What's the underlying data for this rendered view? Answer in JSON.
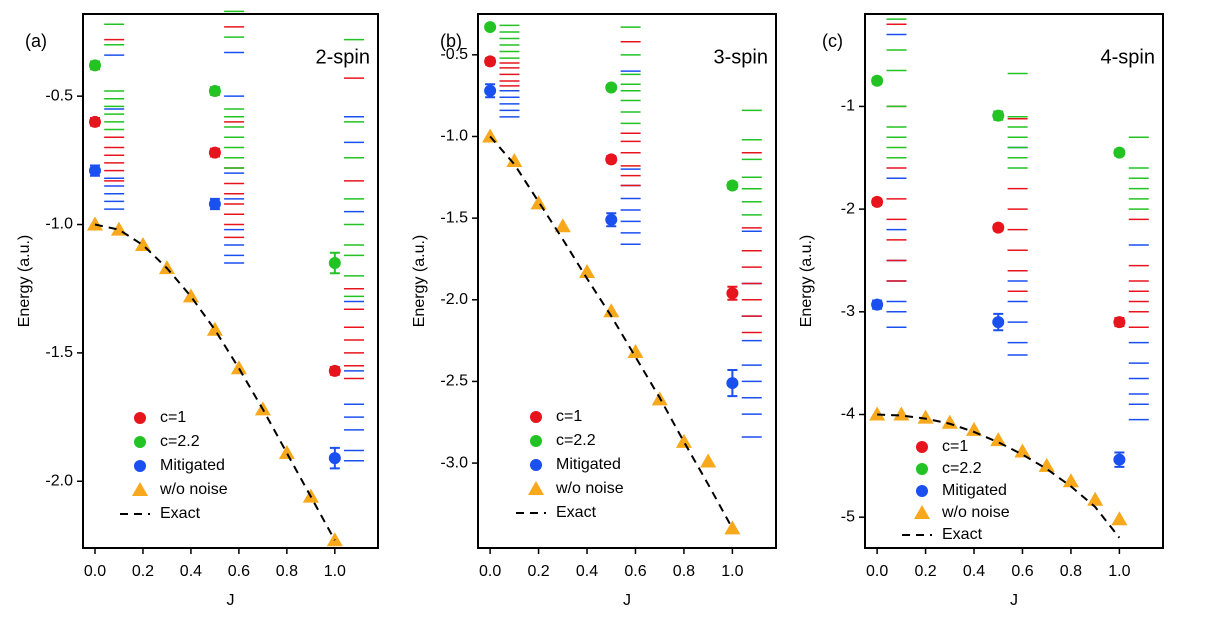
{
  "chart_data": [
    {
      "type": "scatter",
      "label": "(a)",
      "title": "2-spin",
      "xlabel": "J",
      "ylabel": "Energy (a.u.)",
      "xlim": [
        -0.05,
        1.18
      ],
      "xticks": [
        {
          "value": 0,
          "label": "0.0"
        },
        0.2,
        0.4,
        0.6,
        0.8,
        {
          "value": 1,
          "label": "1.0"
        }
      ],
      "ylim": [
        -2.26,
        -0.18
      ],
      "yticks": [
        -0.5,
        {
          "value": -1,
          "label": "-1.0"
        },
        -1.5,
        {
          "value": -2,
          "label": "-2.0"
        }
      ],
      "legend": "lower left",
      "series": [
        {
          "name": "c=1",
          "color": "#e8141d",
          "marker": "circle",
          "x": [
            0,
            0.5,
            1
          ],
          "values": [
            -0.6,
            -0.72,
            -1.57
          ],
          "errors": [
            0.015,
            0.015,
            0.015
          ]
        },
        {
          "name": "c=2.2",
          "color": "#22c322",
          "marker": "circle",
          "x": [
            0,
            0.5,
            1
          ],
          "values": [
            -0.38,
            -0.48,
            -1.15
          ],
          "errors": [
            0.015,
            0.015,
            0.04
          ]
        },
        {
          "name": "Mitigated",
          "color": "#1a4ff0",
          "marker": "circle",
          "x": [
            0,
            0.5,
            1
          ],
          "values": [
            -0.79,
            -0.92,
            -1.91
          ],
          "errors": [
            0.02,
            0.02,
            0.04
          ]
        },
        {
          "name": "w/o noise",
          "color": "#f7a81b",
          "marker": "triangle",
          "x": [
            0,
            0.1,
            0.2,
            0.3,
            0.4,
            0.5,
            0.6,
            0.7,
            0.8,
            0.9,
            1
          ],
          "values": [
            -1.0,
            -1.02,
            -1.08,
            -1.17,
            -1.28,
            -1.41,
            -1.56,
            -1.72,
            -1.89,
            -2.06,
            -2.23
          ]
        },
        {
          "name": "Exact",
          "color": "#000000",
          "marker": "dashed",
          "x": [
            0,
            0.1,
            0.2,
            0.3,
            0.4,
            0.5,
            0.6,
            0.7,
            0.8,
            0.9,
            1
          ],
          "values": [
            -1.0,
            -1.02,
            -1.08,
            -1.17,
            -1.28,
            -1.41,
            -1.56,
            -1.72,
            -1.89,
            -2.06,
            -2.23
          ]
        }
      ],
      "samples": [
        {
          "x": 0.08,
          "color": "#1a4ff0",
          "values": [
            -0.34,
            -0.55,
            -0.82,
            -0.85,
            -0.88,
            -0.91,
            -0.94
          ]
        },
        {
          "x": 0.08,
          "color": "#e8141d",
          "values": [
            -0.28,
            -0.66,
            -0.7,
            -0.73,
            -0.76,
            -0.79,
            -0.83
          ]
        },
        {
          "x": 0.08,
          "color": "#22c322",
          "values": [
            -0.22,
            -0.3,
            -0.48,
            -0.51,
            -0.54,
            -0.57,
            -0.6,
            -0.63
          ]
        },
        {
          "x": 0.58,
          "color": "#1a4ff0",
          "values": [
            -0.33,
            -0.5,
            -0.8,
            -0.9,
            -0.96,
            -1.02,
            -1.08,
            -1.12,
            -1.15
          ]
        },
        {
          "x": 0.58,
          "color": "#e8141d",
          "values": [
            -0.23,
            -0.6,
            -0.78,
            -0.84,
            -0.88,
            -0.92,
            -0.96,
            -1.0,
            -1.05
          ]
        },
        {
          "x": 0.58,
          "color": "#22c322",
          "values": [
            -0.17,
            -0.27,
            -0.55,
            -0.58,
            -0.62,
            -0.66,
            -0.7,
            -0.74,
            -0.78
          ]
        },
        {
          "x": 1.08,
          "color": "#1a4ff0",
          "values": [
            -0.58,
            -0.68,
            -0.95,
            -1.3,
            -1.57,
            -1.7,
            -1.75,
            -1.8,
            -1.88,
            -1.92
          ]
        },
        {
          "x": 1.08,
          "color": "#e8141d",
          "values": [
            -0.43,
            -0.83,
            -1.25,
            -1.33,
            -1.4,
            -1.45,
            -1.5,
            -1.55,
            -1.6
          ]
        },
        {
          "x": 1.08,
          "color": "#22c322",
          "values": [
            -0.28,
            -0.6,
            -0.74,
            -0.9,
            -1.0,
            -1.08,
            -1.12,
            -1.2,
            -1.28
          ]
        }
      ]
    },
    {
      "type": "scatter",
      "label": "(b)",
      "title": "3-spin",
      "xlabel": "J",
      "ylabel": "Energy (a.u.)",
      "xlim": [
        -0.05,
        1.18
      ],
      "xticks": [
        {
          "value": 0,
          "label": "0.0"
        },
        0.2,
        0.4,
        0.6,
        0.8,
        {
          "value": 1,
          "label": "1.0"
        }
      ],
      "ylim": [
        -3.52,
        -0.25
      ],
      "yticks": [
        -0.5,
        {
          "value": -1,
          "label": "-1.0"
        },
        -1.5,
        {
          "value": -2,
          "label": "-2.0"
        },
        -2.5,
        {
          "value": -3,
          "label": "-3.0"
        }
      ],
      "legend": "lower left",
      "series": [
        {
          "name": "c=1",
          "color": "#e8141d",
          "marker": "circle",
          "x": [
            0,
            0.5,
            1
          ],
          "values": [
            -0.54,
            -1.14,
            -1.96
          ],
          "errors": [
            0.02,
            0.02,
            0.04
          ]
        },
        {
          "name": "c=2.2",
          "color": "#22c322",
          "marker": "circle",
          "x": [
            0,
            0.5,
            1
          ],
          "values": [
            -0.33,
            -0.7,
            -1.3
          ],
          "errors": [
            0.015,
            0.015,
            0.02
          ]
        },
        {
          "name": "Mitigated",
          "color": "#1a4ff0",
          "marker": "circle",
          "x": [
            0,
            0.5,
            1
          ],
          "values": [
            -0.72,
            -1.51,
            -2.51
          ],
          "errors": [
            0.04,
            0.04,
            0.08
          ]
        },
        {
          "name": "w/o noise",
          "color": "#f7a81b",
          "marker": "triangle",
          "x": [
            0,
            0.1,
            0.2,
            0.3,
            0.4,
            0.5,
            0.6,
            0.7,
            0.8,
            0.9,
            1
          ],
          "values": [
            -1.0,
            -1.15,
            -1.41,
            -1.55,
            -1.83,
            -2.07,
            -2.32,
            -2.61,
            -2.87,
            -2.99,
            -3.4
          ]
        },
        {
          "name": "Exact",
          "color": "#000000",
          "marker": "dashed",
          "x": [
            0,
            0.1,
            0.2,
            0.3,
            0.4,
            0.5,
            0.6,
            0.7,
            0.8,
            0.9,
            1
          ],
          "values": [
            -1.0,
            -1.17,
            -1.4,
            -1.63,
            -1.87,
            -2.1,
            -2.35,
            -2.6,
            -2.87,
            -3.13,
            -3.4
          ]
        }
      ],
      "samples": [
        {
          "x": 0.08,
          "color": "#1a4ff0",
          "values": [
            -0.72,
            -0.76,
            -0.8,
            -0.84,
            -0.88
          ]
        },
        {
          "x": 0.08,
          "color": "#e8141d",
          "values": [
            -0.55,
            -0.58,
            -0.62,
            -0.66,
            -0.69
          ]
        },
        {
          "x": 0.08,
          "color": "#22c322",
          "values": [
            -0.32,
            -0.36,
            -0.4,
            -0.44,
            -0.48,
            -0.52
          ]
        },
        {
          "x": 0.58,
          "color": "#1a4ff0",
          "values": [
            -0.6,
            -1.2,
            -1.3,
            -1.38,
            -1.45,
            -1.52,
            -1.59,
            -1.66
          ]
        },
        {
          "x": 0.58,
          "color": "#e8141d",
          "values": [
            -0.42,
            -0.98,
            -1.03,
            -1.1,
            -1.18,
            -1.24,
            -1.3
          ]
        },
        {
          "x": 0.58,
          "color": "#22c322",
          "values": [
            -0.33,
            -0.5,
            -0.62,
            -0.68,
            -0.72,
            -0.78,
            -0.85,
            -0.92
          ]
        },
        {
          "x": 1.08,
          "color": "#1a4ff0",
          "values": [
            -1.58,
            -1.9,
            -2.1,
            -2.25,
            -2.4,
            -2.5,
            -2.6,
            -2.7,
            -2.84
          ]
        },
        {
          "x": 1.08,
          "color": "#e8141d",
          "values": [
            -1.1,
            -1.56,
            -1.7,
            -1.8,
            -1.9,
            -2.0,
            -2.1,
            -2.2
          ]
        },
        {
          "x": 1.08,
          "color": "#22c322",
          "values": [
            -0.84,
            -1.02,
            -1.14,
            -1.25,
            -1.32,
            -1.4,
            -1.48
          ]
        }
      ]
    },
    {
      "type": "scatter",
      "label": "(c)",
      "title": "4-spin",
      "xlabel": "J",
      "ylabel": "Energy (a.u.)",
      "xlim": [
        -0.05,
        1.18
      ],
      "xticks": [
        {
          "value": 0,
          "label": "0.0"
        },
        0.2,
        0.4,
        0.6,
        0.8,
        {
          "value": 1,
          "label": "1.0"
        }
      ],
      "ylim": [
        -5.3,
        -0.1
      ],
      "yticks": [
        -1,
        -2,
        -3,
        -4,
        -5
      ],
      "legend": "lower left",
      "series": [
        {
          "name": "c=1",
          "color": "#e8141d",
          "marker": "circle",
          "x": [
            0,
            0.5,
            1
          ],
          "values": [
            -1.93,
            -2.18,
            -3.1
          ],
          "errors": [
            0.03,
            0.03,
            0.04
          ]
        },
        {
          "name": "c=2.2",
          "color": "#22c322",
          "marker": "circle",
          "x": [
            0,
            0.5,
            1
          ],
          "values": [
            -0.75,
            -1.09,
            -1.45
          ],
          "errors": [
            0.03,
            0.04,
            0.03
          ]
        },
        {
          "name": "Mitigated",
          "color": "#1a4ff0",
          "marker": "circle",
          "x": [
            0,
            0.5,
            1
          ],
          "values": [
            -2.93,
            -3.1,
            -4.44
          ],
          "errors": [
            0.04,
            0.08,
            0.07
          ]
        },
        {
          "name": "w/o noise",
          "color": "#f7a81b",
          "marker": "triangle",
          "x": [
            0,
            0.1,
            0.2,
            0.3,
            0.4,
            0.5,
            0.6,
            0.7,
            0.8,
            0.9,
            1
          ],
          "values": [
            -4.0,
            -4.0,
            -4.03,
            -4.08,
            -4.15,
            -4.25,
            -4.36,
            -4.5,
            -4.65,
            -4.83,
            -5.02
          ]
        },
        {
          "name": "Exact",
          "color": "#000000",
          "marker": "dashed",
          "x": [
            0,
            0.1,
            0.2,
            0.3,
            0.4,
            0.5,
            0.6,
            0.7,
            0.8,
            0.9,
            1
          ],
          "values": [
            -4.0,
            -4.01,
            -4.04,
            -4.09,
            -4.17,
            -4.27,
            -4.39,
            -4.53,
            -4.7,
            -4.9,
            -5.2
          ]
        }
      ],
      "samples": [
        {
          "x": 0.08,
          "color": "#1a4ff0",
          "values": [
            -0.3,
            -1.7,
            -2.2,
            -2.5,
            -2.7,
            -2.9,
            -3.0,
            -3.15
          ]
        },
        {
          "x": 0.08,
          "color": "#e8141d",
          "values": [
            -0.2,
            -1.0,
            -1.6,
            -1.9,
            -2.1,
            -2.3,
            -2.5,
            -2.7
          ]
        },
        {
          "x": 0.08,
          "color": "#22c322",
          "values": [
            -0.15,
            -0.45,
            -0.65,
            -1.0,
            -1.2,
            -1.3,
            -1.4,
            -1.5
          ]
        },
        {
          "x": 0.58,
          "color": "#1a4ff0",
          "values": [
            -1.4,
            -2.4,
            -2.7,
            -2.9,
            -3.1,
            -3.3,
            -3.42
          ]
        },
        {
          "x": 0.58,
          "color": "#e8141d",
          "values": [
            -1.12,
            -1.8,
            -2.0,
            -2.2,
            -2.4,
            -2.6,
            -2.8
          ]
        },
        {
          "x": 0.58,
          "color": "#22c322",
          "values": [
            -0.68,
            -1.1,
            -1.2,
            -1.3,
            -1.4,
            -1.5,
            -1.6
          ]
        },
        {
          "x": 1.08,
          "color": "#1a4ff0",
          "values": [
            -2.35,
            -3.3,
            -3.5,
            -3.65,
            -3.8,
            -3.9,
            -4.05
          ]
        },
        {
          "x": 1.08,
          "color": "#e8141d",
          "values": [
            -2.1,
            -2.55,
            -2.7,
            -2.8,
            -2.9,
            -3.0,
            -3.15
          ]
        },
        {
          "x": 1.08,
          "color": "#22c322",
          "values": [
            -1.3,
            -1.6,
            -1.7,
            -1.8,
            -1.9,
            -2.0
          ]
        }
      ]
    }
  ]
}
